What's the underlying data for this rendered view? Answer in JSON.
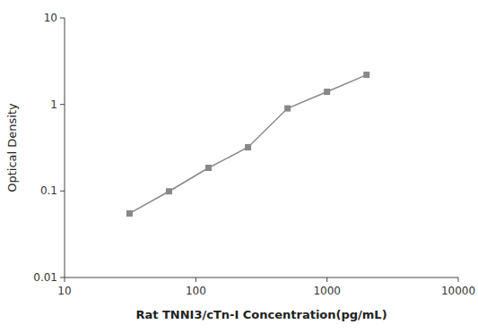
{
  "chart_data": {
    "type": "line",
    "xlabel": "Rat TNNI3/cTn-I Concentration(pg/mL)",
    "ylabel": "Optical Density",
    "x": [
      31.25,
      62.5,
      125,
      250,
      500,
      1000,
      2000
    ],
    "values": [
      0.055,
      0.099,
      0.185,
      0.32,
      0.9,
      1.4,
      2.2
    ],
    "color": "#888888",
    "marker": "square",
    "line_style": "solid",
    "log": true,
    "xlim": [
      10,
      10000
    ],
    "ylim": [
      0.01,
      10
    ],
    "xticks": [
      10,
      100,
      1000,
      10000
    ],
    "yticks": [
      0.01,
      0.1,
      1,
      10
    ],
    "grid": false
  }
}
